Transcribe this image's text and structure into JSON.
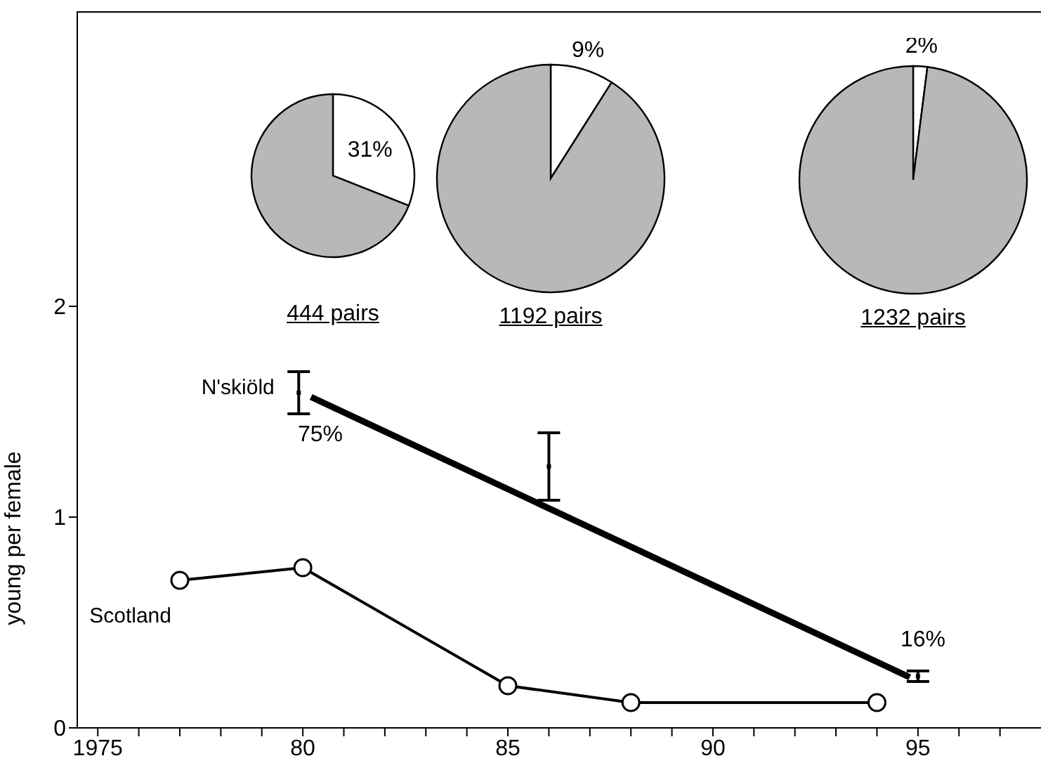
{
  "chart_data": [
    {
      "type": "line",
      "ylabel": "young per female",
      "xlim": [
        1974.5,
        1998
      ],
      "ylim": [
        0,
        3.4
      ],
      "xticks": [
        1975,
        {
          "value": 1976,
          "label": null
        },
        {
          "value": 1977,
          "label": null
        },
        {
          "value": 1978,
          "label": null
        },
        {
          "value": 1979,
          "label": null
        },
        {
          "value": 1980,
          "label": "80"
        },
        {
          "value": 1981,
          "label": null
        },
        {
          "value": 1982,
          "label": null
        },
        {
          "value": 1983,
          "label": null
        },
        {
          "value": 1984,
          "label": null
        },
        {
          "value": 1985,
          "label": "85"
        },
        {
          "value": 1986,
          "label": null
        },
        {
          "value": 1987,
          "label": null
        },
        {
          "value": 1988,
          "label": null
        },
        {
          "value": 1989,
          "label": null
        },
        {
          "value": 1990,
          "label": "90"
        },
        {
          "value": 1991,
          "label": null
        },
        {
          "value": 1992,
          "label": null
        },
        {
          "value": 1993,
          "label": null
        },
        {
          "value": 1994,
          "label": null
        },
        {
          "value": 1995,
          "label": "95"
        },
        {
          "value": 1996,
          "label": null
        },
        {
          "value": 1997,
          "label": null
        }
      ],
      "yticks": [
        0,
        1,
        2
      ],
      "grid": false,
      "legend": false,
      "series": [
        {
          "name": "N'skiöld",
          "type": "line",
          "color": "#000000",
          "x": [
            1980.2,
            1994.8
          ],
          "values": [
            1.57,
            0.24
          ],
          "marker": "none"
        },
        {
          "type": "scatter",
          "color": "#000000",
          "x": [
            1979.9,
            1986,
            1995
          ],
          "values": [
            1.59,
            1.24,
            0.245
          ],
          "errors": [
            0.1,
            0.16,
            0.025
          ]
        },
        {
          "name": "Scotland",
          "type": "line",
          "color": "#000000",
          "x": [
            1977,
            1980,
            1985,
            1988,
            1994
          ],
          "values": [
            0.7,
            0.76,
            0.2,
            0.12,
            0.12
          ],
          "marker": "circle"
        }
      ],
      "annotations": [
        "75%",
        "16%"
      ]
    },
    {
      "type": "pie",
      "title": "444 pairs",
      "categories": [
        null,
        null
      ],
      "values": [
        31,
        69
      ],
      "colors": [
        "#ffffff",
        "#b8b8b8"
      ],
      "value_labels": [
        "31%",
        null
      ]
    },
    {
      "type": "pie",
      "title": "1192 pairs",
      "categories": [
        null,
        null
      ],
      "values": [
        9,
        91
      ],
      "colors": [
        "#ffffff",
        "#b8b8b8"
      ],
      "value_labels": [
        "9%",
        null
      ]
    },
    {
      "type": "pie",
      "title": "1232 pairs",
      "categories": [
        null,
        null
      ],
      "values": [
        2,
        98
      ],
      "colors": [
        "#ffffff",
        "#b8b8b8"
      ],
      "value_labels": [
        "2%",
        null
      ]
    }
  ]
}
